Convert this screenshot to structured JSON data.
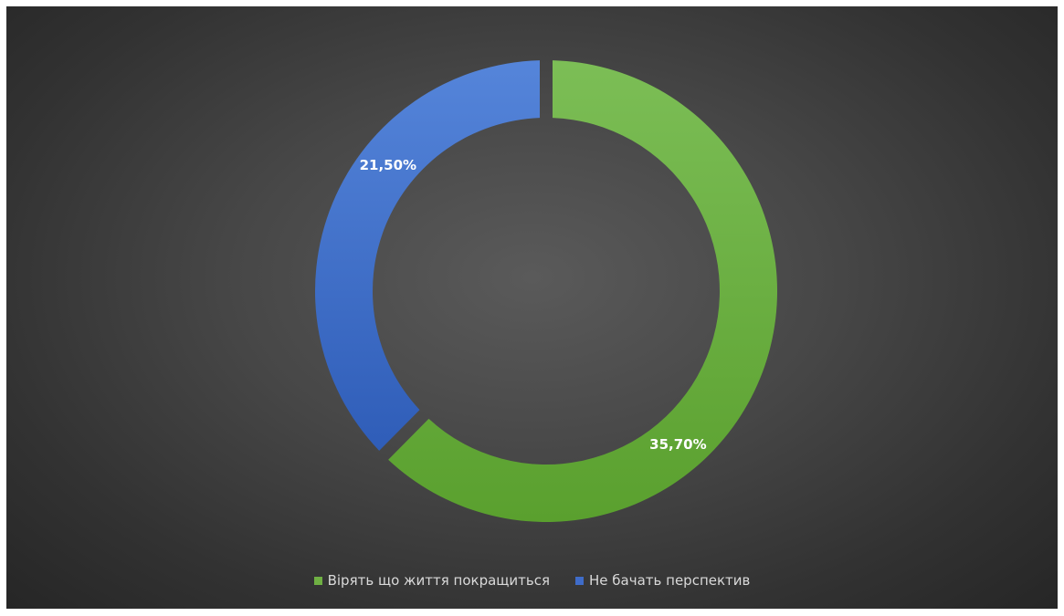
{
  "chart_data": {
    "type": "pie",
    "variant": "doughnut",
    "title": "",
    "slices": [
      {
        "label": "Вірять що життя покращиться",
        "value": 35.7,
        "value_label": "35,70%",
        "color": "#6fb043"
      },
      {
        "label": "Не бачать перспектив",
        "value": 21.5,
        "value_label": "21,50%",
        "color": "#3f6cc9"
      }
    ],
    "start_angle_deg": 0,
    "direction": "clockwise",
    "legend_position": "bottom",
    "background_color": "#404040"
  }
}
